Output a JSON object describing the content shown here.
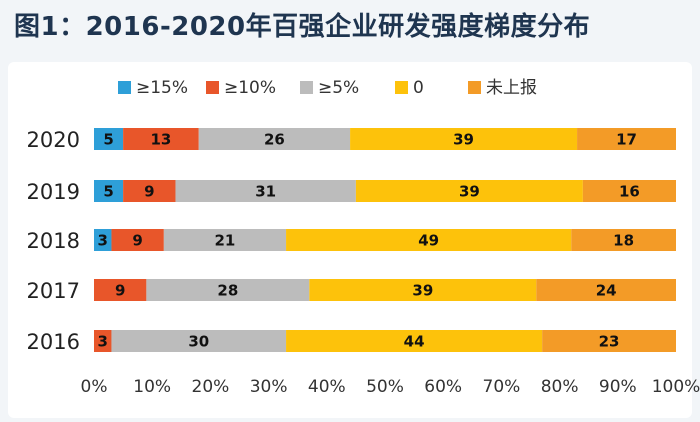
{
  "title": "图1：2016-2020年百强企业研发强度梯度分布",
  "chart_data": {
    "type": "bar",
    "orientation": "horizontal",
    "stacked": true,
    "percent_stacked": true,
    "categories": [
      "2020",
      "2019",
      "2018",
      "2017",
      "2016"
    ],
    "series": [
      {
        "name": "≥15%",
        "color": "#2e9fd8",
        "values": [
          5,
          5,
          3,
          0,
          0
        ]
      },
      {
        "name": "≥10%",
        "color": "#e8562a",
        "values": [
          13,
          9,
          9,
          9,
          3
        ]
      },
      {
        "name": "≥5%",
        "color": "#bcbcbc",
        "values": [
          26,
          31,
          21,
          28,
          30
        ]
      },
      {
        "name": "0",
        "color": "#fdc20b",
        "values": [
          39,
          39,
          49,
          39,
          44
        ]
      },
      {
        "name": "未上报",
        "color": "#f39b27",
        "values": [
          17,
          16,
          18,
          24,
          23
        ]
      }
    ],
    "xticks": [
      "0%",
      "10%",
      "20%",
      "30%",
      "40%",
      "50%",
      "60%",
      "70%",
      "80%",
      "90%",
      "100%"
    ],
    "xlim": [
      0,
      100
    ],
    "legend_position": "top",
    "grid": false
  }
}
